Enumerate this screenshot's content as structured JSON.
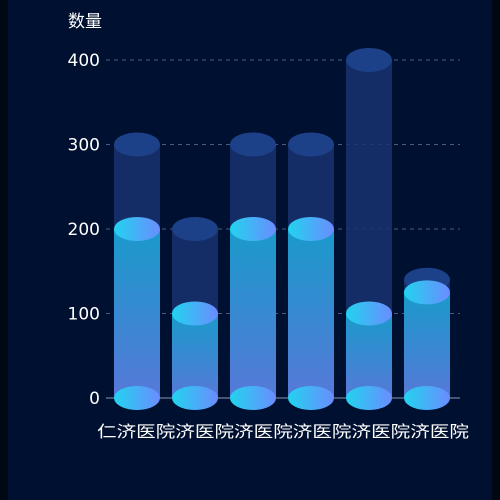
{
  "chart_data": {
    "type": "bar",
    "y_unit_label": "数量",
    "categories": [
      "仁济医院",
      "济医院",
      "济医院",
      "济医院",
      "济医院",
      "济医院"
    ],
    "category_label_run": "仁济医院济医院济医院济医院济医院济医院",
    "series": [
      {
        "role": "background",
        "values": [
          300,
          200,
          300,
          300,
          400,
          140
        ]
      },
      {
        "role": "foreground",
        "values": [
          200,
          100,
          200,
          200,
          100,
          125
        ]
      }
    ],
    "ylim": [
      0,
      400
    ],
    "yticks": [
      0,
      100,
      200,
      300,
      400
    ],
    "grid": "dashed-horizontal",
    "legend": "none",
    "colors": {
      "background_bar": "#173370",
      "background_cap": "#1d4188",
      "foreground_top": "#1a9acb",
      "foreground_bottom": "#5679d8",
      "cap_light": "#22d3ee",
      "cap_dark": "#6b8cff",
      "grid": "#4a5a80",
      "axis": "#8a96b8"
    }
  }
}
